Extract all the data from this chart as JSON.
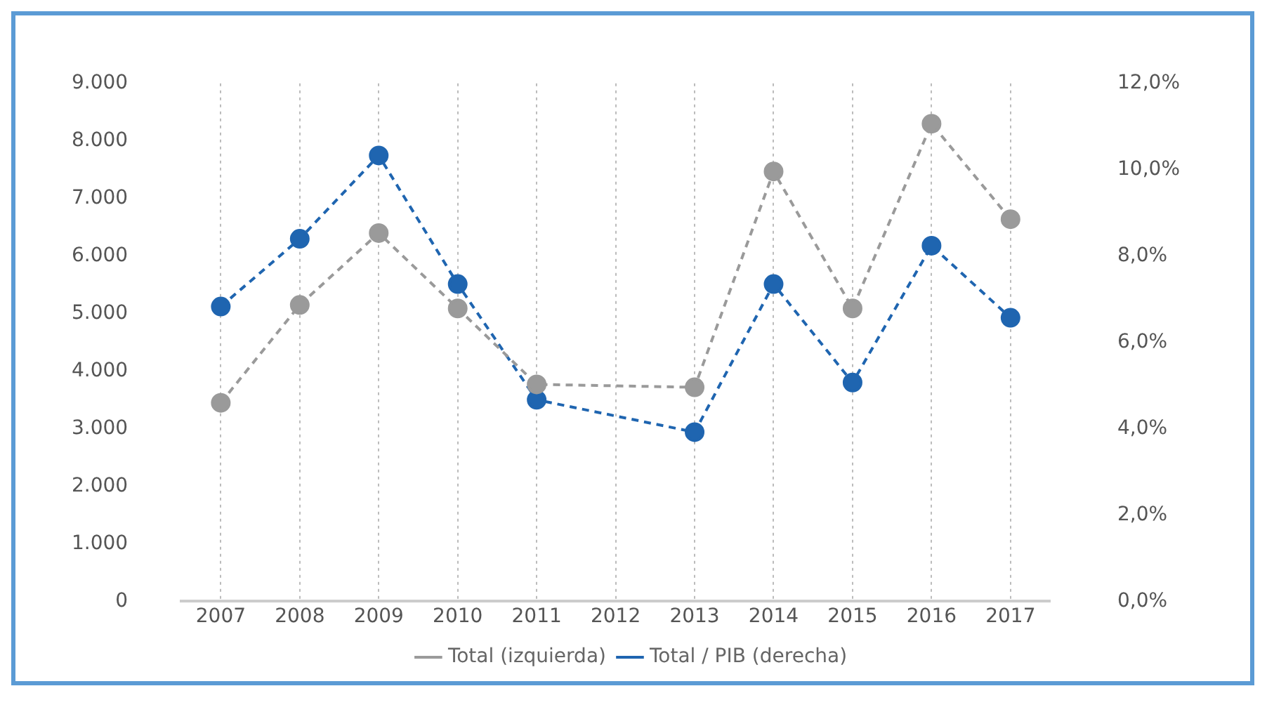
{
  "chart_data": {
    "type": "line",
    "categories": [
      "2007",
      "2008",
      "2009",
      "2010",
      "2011",
      "2012",
      "2013",
      "2014",
      "2015",
      "2016",
      "2017"
    ],
    "series": [
      {
        "name": "Total (izquierda)",
        "color": "#9a9a9a",
        "values": [
          3450,
          5150,
          6400,
          5090,
          3770,
          null,
          3720,
          7470,
          5090,
          8300,
          6640
        ]
      },
      {
        "name": "Total / PIB (derecha)",
        "color": "#1f65b0",
        "axis": "y2",
        "values": [
          6.83,
          8.4,
          10.33,
          7.35,
          4.67,
          null,
          3.92,
          7.35,
          5.07,
          8.24,
          6.57
        ]
      }
    ],
    "ylim": [
      0,
      9000
    ],
    "yticks": [
      {
        "value": 0,
        "label": "0"
      },
      {
        "value": 1000,
        "label": "1.000"
      },
      {
        "value": 2000,
        "label": "2.000"
      },
      {
        "value": 3000,
        "label": "3.000"
      },
      {
        "value": 4000,
        "label": "4.000"
      },
      {
        "value": 5000,
        "label": "5.000"
      },
      {
        "value": 6000,
        "label": "6.000"
      },
      {
        "value": 7000,
        "label": "7.000"
      },
      {
        "value": 8000,
        "label": "8.000"
      },
      {
        "value": 9000,
        "label": "9.000"
      }
    ],
    "y2lim": [
      0,
      12
    ],
    "y2ticks": [
      {
        "value": 0,
        "label": "0,0%"
      },
      {
        "value": 2,
        "label": "2,0%"
      },
      {
        "value": 4,
        "label": "4,0%"
      },
      {
        "value": 6,
        "label": "6,0%"
      },
      {
        "value": 8,
        "label": "8,0%"
      },
      {
        "value": 10,
        "label": "10,0%"
      },
      {
        "value": 12,
        "label": "12,0%"
      }
    ],
    "grid": "x",
    "legend": "bottom",
    "marker": "circle",
    "line_style": "dashed"
  }
}
